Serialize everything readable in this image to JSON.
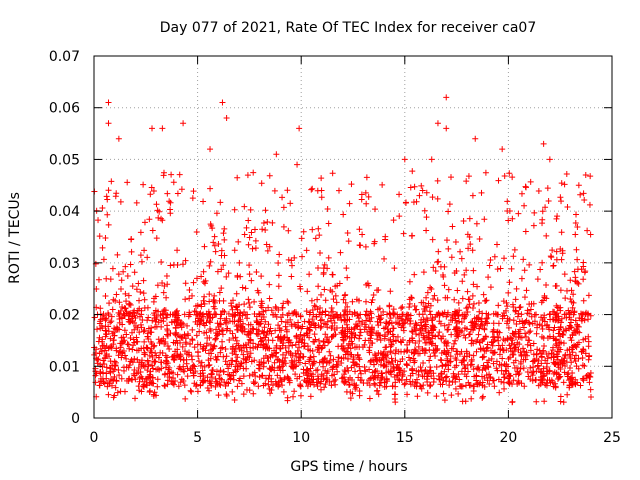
{
  "chart_data": {
    "type": "scatter",
    "title": "Day 077 of 2021, Rate Of TEC Index for receiver ca07",
    "xlabel": "GPS time / hours",
    "ylabel": "ROTI / TECUs",
    "xlim": [
      0,
      25
    ],
    "ylim": [
      0,
      0.07
    ],
    "xticks": [
      0,
      5,
      10,
      15,
      20,
      25
    ],
    "xtick_labels": [
      "0",
      "5",
      "10",
      "15",
      "20",
      "25"
    ],
    "yticks": [
      0,
      0.01,
      0.02,
      0.03,
      0.04,
      0.05,
      0.06,
      0.07
    ],
    "ytick_labels": [
      "0",
      "0.01",
      "0.02",
      "0.03",
      "0.04",
      "0.05",
      "0.06",
      "0.07"
    ],
    "grid": true,
    "marker": "+",
    "color": "#ff0000",
    "series": [
      {
        "name": "ROTI",
        "data_range_x": [
          0,
          24
        ],
        "typical_band": [
          0.006,
          0.02
        ],
        "notable_peaks": [
          {
            "x": 0.7,
            "y": 0.061
          },
          {
            "x": 0.7,
            "y": 0.057
          },
          {
            "x": 1.2,
            "y": 0.054
          },
          {
            "x": 2.8,
            "y": 0.056
          },
          {
            "x": 3.3,
            "y": 0.056
          },
          {
            "x": 4.3,
            "y": 0.057
          },
          {
            "x": 5.6,
            "y": 0.052
          },
          {
            "x": 6.2,
            "y": 0.061
          },
          {
            "x": 6.4,
            "y": 0.058
          },
          {
            "x": 8.8,
            "y": 0.051
          },
          {
            "x": 9.8,
            "y": 0.049
          },
          {
            "x": 9.9,
            "y": 0.056
          },
          {
            "x": 15.0,
            "y": 0.05
          },
          {
            "x": 16.3,
            "y": 0.05
          },
          {
            "x": 16.6,
            "y": 0.057
          },
          {
            "x": 17.0,
            "y": 0.062
          },
          {
            "x": 17.0,
            "y": 0.056
          },
          {
            "x": 18.4,
            "y": 0.054
          },
          {
            "x": 19.7,
            "y": 0.052
          },
          {
            "x": 21.7,
            "y": 0.053
          },
          {
            "x": 22.0,
            "y": 0.05
          },
          {
            "x": 23.4,
            "y": 0.045
          }
        ]
      }
    ]
  }
}
